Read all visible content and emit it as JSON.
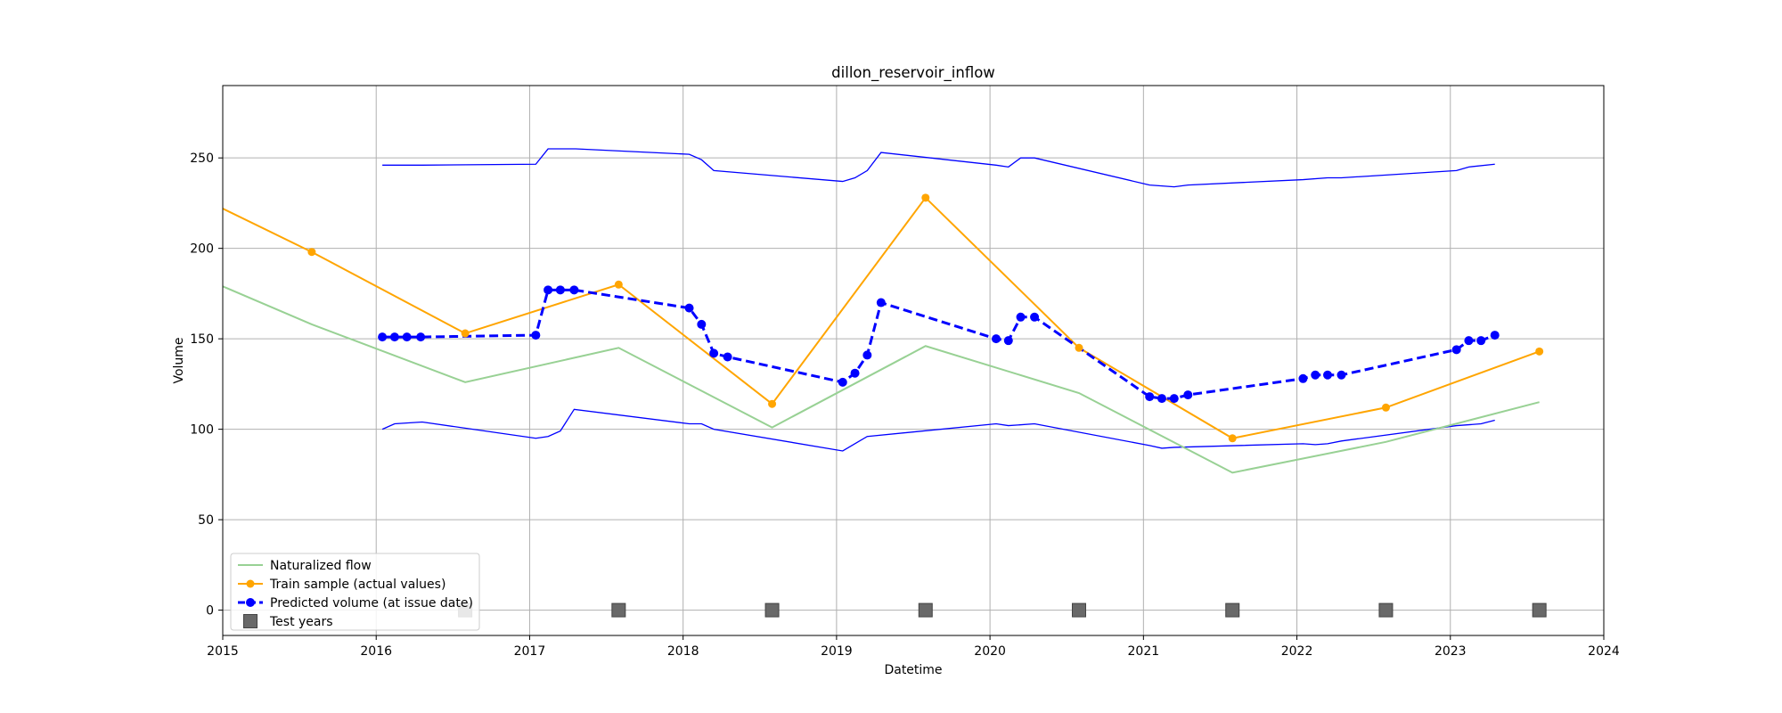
{
  "chart_data": {
    "type": "line",
    "title": "dillon_reservoir_inflow",
    "xlabel": "Datetime",
    "ylabel": "Volume",
    "xlim": [
      2015.0,
      2024.0
    ],
    "ylim": [
      -14,
      290
    ],
    "x_ticks": [
      2015,
      2016,
      2017,
      2018,
      2019,
      2020,
      2021,
      2022,
      2023,
      2024
    ],
    "x_tick_labels": [
      "2015",
      "2016",
      "2017",
      "2018",
      "2019",
      "2020",
      "2021",
      "2022",
      "2023",
      "2024"
    ],
    "y_ticks": [
      0,
      50,
      100,
      150,
      200,
      250
    ],
    "y_tick_labels": [
      "0",
      "50",
      "100",
      "150",
      "200",
      "250"
    ],
    "grid": true,
    "legend_position": "lower-left",
    "legend": [
      {
        "label": "Naturalized flow",
        "series": "naturalized"
      },
      {
        "label": "Train sample (actual values)",
        "series": "train"
      },
      {
        "label": "Predicted volume (at issue date)",
        "series": "predicted"
      },
      {
        "label": "Test years",
        "series": "test_years"
      }
    ],
    "colors": {
      "naturalized": "#98d194",
      "train": "#ffa500",
      "predicted": "#0000ff",
      "band": "#0000ff",
      "test_years": "#696969",
      "grid": "#b0b0b0"
    },
    "series": {
      "naturalized": {
        "name": "Naturalized flow",
        "x": [
          2015.0,
          2015.58,
          2016.58,
          2017.58,
          2018.58,
          2019.58,
          2020.58,
          2021.58,
          2022.58,
          2023.58
        ],
        "y": [
          179,
          158,
          126,
          145,
          101,
          146,
          120,
          76,
          93,
          115
        ]
      },
      "train": {
        "name": "Train sample (actual values)",
        "x": [
          2015.0,
          2015.58,
          2016.58,
          2017.58,
          2018.58,
          2019.58,
          2020.58,
          2021.58,
          2022.58,
          2023.58
        ],
        "y": [
          222,
          198,
          153,
          180,
          114,
          228,
          145,
          95,
          112,
          143
        ]
      },
      "predicted": {
        "name": "Predicted volume (at issue date)",
        "x": [
          2016.04,
          2016.12,
          2016.2,
          2016.29,
          2017.04,
          2017.12,
          2017.2,
          2017.29,
          2018.04,
          2018.12,
          2018.2,
          2018.29,
          2019.04,
          2019.12,
          2019.2,
          2019.29,
          2020.04,
          2020.12,
          2020.2,
          2020.29,
          2021.04,
          2021.12,
          2021.2,
          2021.29,
          2022.04,
          2022.12,
          2022.2,
          2022.29,
          2023.04,
          2023.12,
          2023.2,
          2023.29
        ],
        "y": [
          151,
          151,
          151,
          151,
          152,
          177,
          177,
          177,
          167,
          158,
          142,
          140,
          126,
          131,
          141,
          170,
          150,
          149,
          162,
          162,
          118,
          117,
          117,
          119,
          128,
          130,
          130,
          130,
          144,
          149,
          149,
          152
        ]
      },
      "upper_band": {
        "x": [
          2016.04,
          2016.3,
          2017.04,
          2017.12,
          2017.3,
          2018.04,
          2018.12,
          2018.2,
          2019.04,
          2019.12,
          2019.2,
          2019.29,
          2020.04,
          2020.12,
          2020.2,
          2020.29,
          2021.04,
          2021.2,
          2021.29,
          2022.04,
          2022.2,
          2022.29,
          2023.04,
          2023.12,
          2023.29
        ],
        "y": [
          246,
          246,
          246.5,
          255,
          255,
          252,
          249,
          243,
          237,
          239,
          243,
          253,
          246,
          245,
          250,
          250,
          235,
          234,
          235,
          238,
          239,
          239,
          243,
          245,
          246.5
        ]
      },
      "lower_band": {
        "x": [
          2016.04,
          2016.12,
          2016.3,
          2017.04,
          2017.12,
          2017.2,
          2017.29,
          2018.04,
          2018.12,
          2018.2,
          2019.04,
          2019.12,
          2019.2,
          2020.04,
          2020.12,
          2020.29,
          2021.04,
          2021.12,
          2021.2,
          2022.04,
          2022.12,
          2022.2,
          2022.29,
          2023.04,
          2023.2,
          2023.29
        ],
        "y": [
          100,
          103,
          104,
          95,
          96,
          99,
          111,
          103,
          103,
          100,
          88,
          92,
          96,
          103,
          102,
          103,
          91,
          89.5,
          90,
          92,
          91.5,
          92,
          93.5,
          102,
          103,
          105
        ]
      },
      "test_years": {
        "name": "Test years",
        "x": [
          2016.58,
          2017.58,
          2018.58,
          2019.58,
          2020.58,
          2021.58,
          2022.58,
          2023.58
        ],
        "y": [
          0,
          0,
          0,
          0,
          0,
          0,
          0,
          0
        ]
      }
    }
  }
}
